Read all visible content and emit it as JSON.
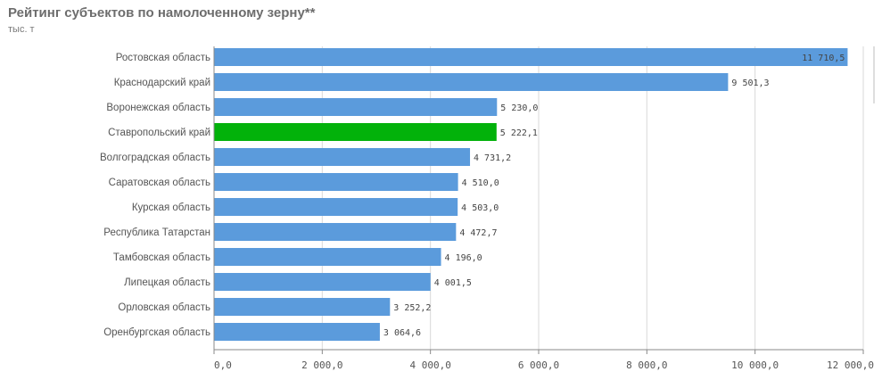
{
  "chart_data": {
    "type": "bar",
    "orientation": "horizontal",
    "title": "Рейтинг субъектов по намолоченному зерну**",
    "subtitle": "тыс. т",
    "categories": [
      "Ростовская область",
      "Краснодарский край",
      "Воронежская область",
      "Ставропольский край",
      "Волгоградская область",
      "Саратовская область",
      "Курская область",
      "Республика Татарстан",
      "Тамбовская область",
      "Липецкая область",
      "Орловская область",
      "Оренбургская область"
    ],
    "values": [
      11710.5,
      9501.3,
      5230.0,
      5222.1,
      4731.2,
      4510.0,
      4503.0,
      4472.7,
      4196.0,
      4001.5,
      3252.2,
      3064.6
    ],
    "value_labels": [
      "11 710,5",
      "9 501,3",
      "5 230,0",
      "5 222,1",
      "4 731,2",
      "4 510,0",
      "4 503,0",
      "4 472,7",
      "4 196,0",
      "4 001,5",
      "3 252,2",
      "3 064,6"
    ],
    "xlim": [
      0,
      12000
    ],
    "xticks": [
      0,
      2000,
      4000,
      6000,
      8000,
      10000,
      12000
    ],
    "xtick_labels": [
      "0,0",
      "2 000,0",
      "4 000,0",
      "6 000,0",
      "8 000,0",
      "10 000,0",
      "12 000,0"
    ],
    "highlight_index": 3,
    "grid": "vertical",
    "colors": {
      "bar": "#5b9bdc",
      "highlight": "#02b20a",
      "grid": "#d9d9d9",
      "axis": "#888888"
    }
  }
}
